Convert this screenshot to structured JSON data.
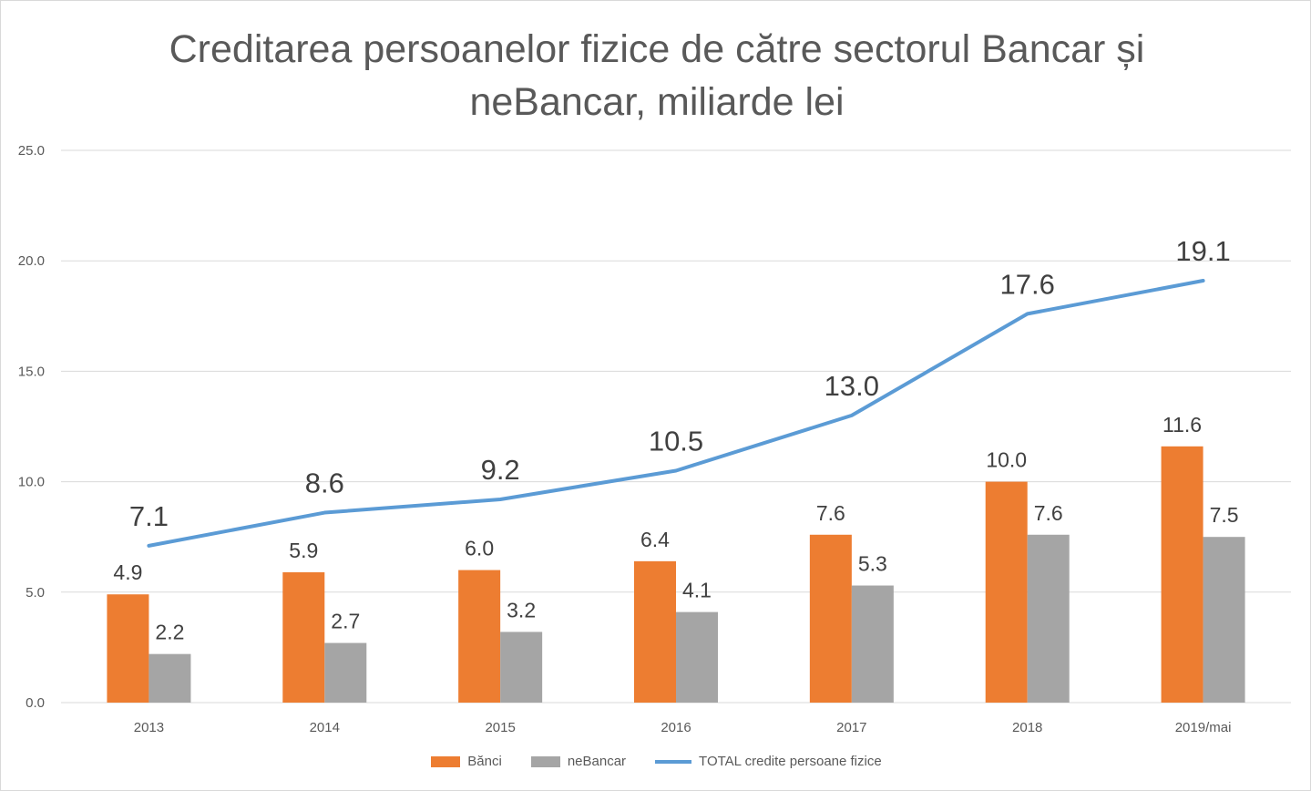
{
  "chart_data": {
    "type": "bar",
    "title": "Creditarea persoanelor fizice de către sectorul Bancar și neBancar, miliarde lei",
    "categories": [
      "2013",
      "2014",
      "2015",
      "2016",
      "2017",
      "2018",
      "2019/mai"
    ],
    "series": [
      {
        "name": "Bănci",
        "type": "bar",
        "color": "#ed7d31",
        "values": [
          4.9,
          5.9,
          6.0,
          6.4,
          7.6,
          10.0,
          11.6
        ]
      },
      {
        "name": "neBancar",
        "type": "bar",
        "color": "#a5a5a5",
        "values": [
          2.2,
          2.7,
          3.2,
          4.1,
          5.3,
          7.6,
          7.5
        ]
      },
      {
        "name": "TOTAL credite persoane fizice",
        "type": "line",
        "color": "#5b9bd5",
        "values": [
          7.1,
          8.6,
          9.2,
          10.5,
          13.0,
          17.6,
          19.1
        ]
      }
    ],
    "ylim": [
      0,
      25
    ],
    "yticks": [
      "0.0",
      "5.0",
      "10.0",
      "15.0",
      "20.0",
      "25.0"
    ],
    "grid": true,
    "legend": "bottom"
  }
}
